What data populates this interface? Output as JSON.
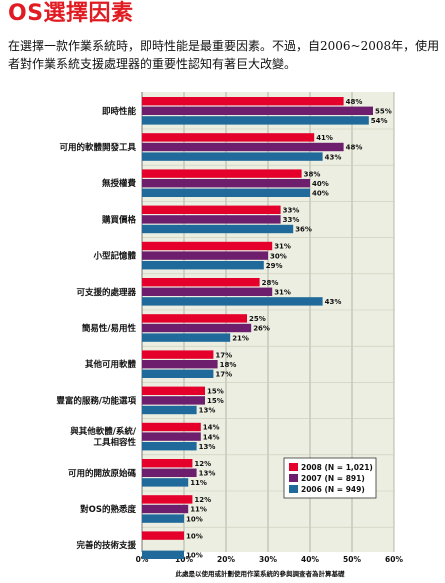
{
  "title": "OS選擇因素",
  "description": "在選擇一款作業系統時，即時性能是最重要因素。不過，自2006~2008年，使用者對作業系統支援處理器的重要性認知有著巨大改變。",
  "chart_data": {
    "type": "bar",
    "orientation": "horizontal",
    "categories": [
      [
        "即時性能"
      ],
      [
        "可用的軟體開發工具"
      ],
      [
        "無授權費"
      ],
      [
        "購買價格"
      ],
      [
        "小型記憶體"
      ],
      [
        "可支援的處理器"
      ],
      [
        "簡易性/易用性"
      ],
      [
        "其他可用軟體"
      ],
      [
        "豐富的服務/功能選項"
      ],
      [
        "與其他軟體/系統/",
        "工具相容性"
      ],
      [
        "可用的開放原始碼"
      ],
      [
        "對OS的熟悉度"
      ],
      [
        "完善的技術支援"
      ]
    ],
    "series": [
      {
        "name": "2008 (N = 1,021)",
        "color": "#e4002b",
        "values": [
          48,
          41,
          38,
          33,
          31,
          28,
          25,
          17,
          15,
          14,
          12,
          12,
          10
        ]
      },
      {
        "name": "2007 (N = 891)",
        "color": "#6d1f6e",
        "values": [
          55,
          48,
          40,
          33,
          30,
          31,
          26,
          18,
          15,
          14,
          13,
          11,
          null
        ]
      },
      {
        "name": "2006 (N = 949)",
        "color": "#1f6a9a",
        "values": [
          54,
          43,
          40,
          36,
          29,
          43,
          21,
          17,
          13,
          13,
          11,
          10,
          10
        ]
      }
    ],
    "value_suffix": "%",
    "xlim": [
      0,
      60
    ],
    "xticks": [
      0,
      10,
      20,
      30,
      40,
      50,
      60
    ],
    "grid": true,
    "legend_position": "bottom-right",
    "footnote": "此處是以使用或計劃使用作業系統的參與調查者為計算基礎"
  }
}
